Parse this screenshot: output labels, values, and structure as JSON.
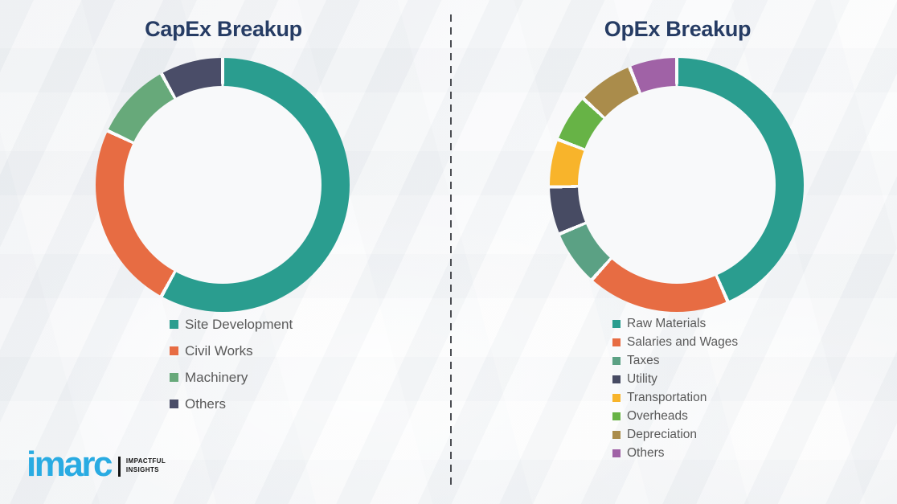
{
  "divider": {
    "style": "vertical-dashed",
    "color": "#4b4d52"
  },
  "chart_data": [
    {
      "type": "pie",
      "variant": "donut",
      "title": "CapEx Breakup",
      "direction": "clockwise",
      "start_angle_deg": 0,
      "legend_position": "below-chart-left",
      "values_are_percent_estimates": true,
      "segments": [
        {
          "label": "Site Development",
          "value": 58,
          "color": "#2A9D8F"
        },
        {
          "label": "Civil Works",
          "value": 24,
          "color": "#E76C43"
        },
        {
          "label": "Machinery",
          "value": 10,
          "color": "#67A97A"
        },
        {
          "label": "Others",
          "value": 8,
          "color": "#4A4D68"
        }
      ]
    },
    {
      "type": "pie",
      "variant": "donut",
      "title": "OpEx Breakup",
      "direction": "clockwise",
      "start_angle_deg": 0,
      "legend_position": "below-chart-left",
      "values_are_percent_estimates": true,
      "segments": [
        {
          "label": "Raw Materials",
          "value": 43,
          "color": "#2A9D8F"
        },
        {
          "label": "Salaries and Wages",
          "value": 18,
          "color": "#E76C43"
        },
        {
          "label": "Taxes",
          "value": 7,
          "color": "#5BA184"
        },
        {
          "label": "Utility",
          "value": 6,
          "color": "#474B63"
        },
        {
          "label": "Transportation",
          "value": 6,
          "color": "#F8B42B"
        },
        {
          "label": "Overheads",
          "value": 6,
          "color": "#67B346"
        },
        {
          "label": "Depreciation",
          "value": 7,
          "color": "#AA8C4B"
        },
        {
          "label": "Others",
          "value": 6,
          "color": "#A062A6"
        }
      ]
    }
  ],
  "logo": {
    "brand": "imarc",
    "tagline_line1": "IMPACTFUL",
    "tagline_line2": "INSIGHTS",
    "brand_color": "#29ABE2"
  }
}
